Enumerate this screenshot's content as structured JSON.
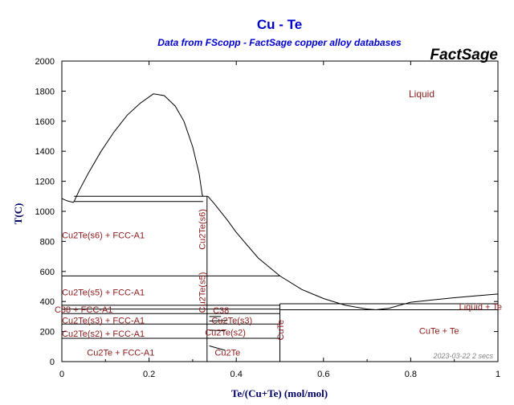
{
  "chart_data": {
    "type": "line",
    "title": "Cu - Te",
    "subtitle": "Data from FScopp - FactSage copper alloy databases",
    "brand": "FactSage",
    "xlabel": "Te/(Cu+Te) (mol/mol)",
    "ylabel": "T(C)",
    "xlim": [
      0,
      1
    ],
    "ylim": [
      0,
      2000
    ],
    "x_ticks": [
      "0",
      "0.2",
      "0.4",
      "0.6",
      "0.8",
      "1"
    ],
    "y_ticks": [
      "0",
      "200",
      "400",
      "600",
      "800",
      "1000",
      "1200",
      "1400",
      "1600",
      "1800",
      "2000"
    ],
    "timestamp": "2023-03-22  2 secs",
    "series": [
      {
        "points": [
          [
            0,
            1085
          ],
          [
            0.012,
            1070
          ],
          [
            0.026,
            1060
          ],
          [
            0.028,
            1065
          ]
        ]
      },
      {
        "points": [
          [
            0.028,
            1065
          ],
          [
            0.04,
            1140
          ],
          [
            0.06,
            1250
          ],
          [
            0.09,
            1400
          ],
          [
            0.12,
            1530
          ],
          [
            0.15,
            1640
          ],
          [
            0.18,
            1720
          ],
          [
            0.21,
            1782
          ],
          [
            0.235,
            1770
          ],
          [
            0.26,
            1700
          ],
          [
            0.28,
            1600
          ],
          [
            0.3,
            1430
          ],
          [
            0.315,
            1250
          ],
          [
            0.322,
            1110
          ],
          [
            0.324,
            1100
          ]
        ]
      },
      {
        "points": [
          [
            0.335,
            1100
          ],
          [
            0.35,
            1050
          ],
          [
            0.38,
            940
          ],
          [
            0.4,
            860
          ],
          [
            0.45,
            690
          ],
          [
            0.5,
            570
          ],
          [
            0.55,
            480
          ],
          [
            0.6,
            420
          ],
          [
            0.65,
            375
          ],
          [
            0.7,
            350
          ],
          [
            0.72,
            345
          ],
          [
            0.75,
            355
          ],
          [
            0.8,
            395
          ],
          [
            0.85,
            410
          ],
          [
            0.9,
            425
          ],
          [
            0.95,
            438
          ],
          [
            1.0,
            450
          ]
        ]
      },
      {
        "points": [
          [
            0.028,
            1100
          ],
          [
            0.335,
            1100
          ]
        ]
      },
      {
        "points": [
          [
            0.028,
            1065
          ],
          [
            0.324,
            1065
          ]
        ]
      },
      {
        "points": [
          [
            0.0,
            1065
          ],
          [
            0.0,
            1085
          ]
        ]
      },
      {
        "points": [
          [
            0.0,
            570
          ],
          [
            0.5,
            570
          ]
        ]
      },
      {
        "points": [
          [
            0.0,
            375
          ],
          [
            0.5,
            375
          ]
        ]
      },
      {
        "points": [
          [
            0.0,
            350
          ],
          [
            0.5,
            350
          ]
        ]
      },
      {
        "points": [
          [
            0.0,
            320
          ],
          [
            0.5,
            320
          ]
        ]
      },
      {
        "points": [
          [
            0.0,
            250
          ],
          [
            0.5,
            250
          ]
        ]
      },
      {
        "points": [
          [
            0.0,
            155
          ],
          [
            0.5,
            155
          ]
        ]
      },
      {
        "points": [
          [
            0.5,
            385
          ],
          [
            1.0,
            385
          ]
        ]
      },
      {
        "points": [
          [
            0.5,
            345
          ],
          [
            1.0,
            345
          ]
        ]
      },
      {
        "points": [
          [
            0.333,
            0
          ],
          [
            0.333,
            1100
          ]
        ]
      },
      {
        "points": [
          [
            0.5,
            0
          ],
          [
            0.5,
            385
          ]
        ]
      },
      {
        "points": [
          [
            0.338,
            300
          ],
          [
            0.365,
            300
          ]
        ]
      },
      {
        "points": [
          [
            0.338,
            270
          ],
          [
            0.38,
            275
          ]
        ]
      },
      {
        "points": [
          [
            0.338,
            210
          ],
          [
            0.375,
            205
          ]
        ]
      },
      {
        "points": [
          [
            0.338,
            105
          ],
          [
            0.375,
            75
          ]
        ]
      }
    ],
    "labels": [
      {
        "text": "Liquid",
        "x": 0.825,
        "y": 1760,
        "size": 12
      },
      {
        "text": "Cu2Te(s6) + FCC-A1",
        "x": 0.095,
        "y": 820,
        "size": 11
      },
      {
        "text": "Cu2Te(s5) + FCC-A1",
        "x": 0.095,
        "y": 440,
        "size": 11
      },
      {
        "text": "C38 + FCC-A1",
        "x": 0.05,
        "y": 325,
        "size": 11
      },
      {
        "text": "Cu2Te(s3) + FCC-A1",
        "x": 0.095,
        "y": 255,
        "size": 11
      },
      {
        "text": "Cu2Te(s2) + FCC-A1",
        "x": 0.095,
        "y": 165,
        "size": 11
      },
      {
        "text": "Cu2Te + FCC-A1",
        "x": 0.135,
        "y": 40,
        "size": 11
      },
      {
        "text": "C38",
        "x": 0.365,
        "y": 320,
        "size": 11
      },
      {
        "text": "Cu2Te(s3)",
        "x": 0.39,
        "y": 255,
        "size": 11
      },
      {
        "text": "Cu2Te(s2)",
        "x": 0.375,
        "y": 175,
        "size": 11
      },
      {
        "text": "Cu2Te",
        "x": 0.38,
        "y": 40,
        "size": 11
      },
      {
        "text": "CuTe + Te",
        "x": 0.865,
        "y": 185,
        "size": 11
      },
      {
        "text": "Liquid + Te",
        "x": 0.96,
        "y": 345,
        "size": 11
      },
      {
        "text": "Cu2Te(s6)",
        "x": 0.329,
        "y": 880,
        "size": 11,
        "rotate": -90
      },
      {
        "text": "Cu2Te(s5)",
        "x": 0.329,
        "y": 460,
        "size": 11,
        "rotate": -90
      },
      {
        "text": "CuTe",
        "x": 0.508,
        "y": 210,
        "size": 11,
        "rotate": -90
      }
    ]
  }
}
